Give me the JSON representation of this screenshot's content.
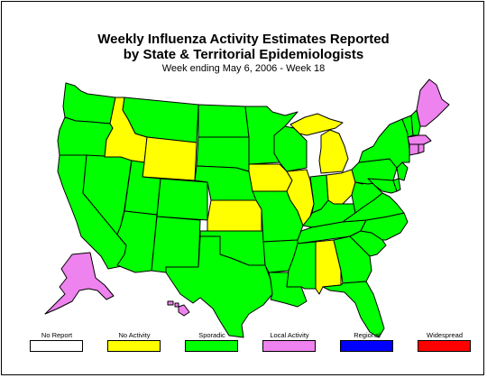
{
  "title_line1": "Weekly Influenza Activity Estimates Reported",
  "title_line2": "by State & Territorial Epidemiologists",
  "subtitle": "Week ending May 6, 2006 - Week 18",
  "colors": {
    "no_report": "#ffffff",
    "no_activity": "#ffff00",
    "sporadic": "#00ff00",
    "local": "#ee82ee",
    "regional": "#0000ff",
    "widespread": "#ff0000"
  },
  "legend": [
    {
      "label": "No Report",
      "color": "#ffffff"
    },
    {
      "label": "No Activity",
      "color": "#ffff00"
    },
    {
      "label": "Sporadic",
      "color": "#00ff00"
    },
    {
      "label": "Local Activity",
      "color": "#ee82ee"
    },
    {
      "label": "Regional",
      "color": "#0000ff"
    },
    {
      "label": "Widespread",
      "color": "#ff0000"
    }
  ],
  "states": {
    "WA": "sporadic",
    "OR": "sporadic",
    "CA": "sporadic",
    "NV": "sporadic",
    "ID": "no_activity",
    "MT": "sporadic",
    "WY": "no_activity",
    "UT": "sporadic",
    "AZ": "sporadic",
    "CO": "sporadic",
    "NM": "sporadic",
    "ND": "sporadic",
    "SD": "sporadic",
    "NE": "sporadic",
    "KS": "no_activity",
    "OK": "sporadic",
    "TX": "sporadic",
    "MN": "sporadic",
    "IA": "no_activity",
    "MO": "sporadic",
    "AR": "sporadic",
    "LA": "sporadic",
    "WI": "sporadic",
    "IL": "no_activity",
    "MI": "no_activity",
    "IN": "sporadic",
    "OH": "no_activity",
    "KY": "sporadic",
    "TN": "sporadic",
    "MS": "sporadic",
    "AL": "no_activity",
    "GA": "sporadic",
    "FL": "sporadic",
    "SC": "sporadic",
    "NC": "sporadic",
    "VA": "sporadic",
    "WV": "sporadic",
    "PA": "sporadic",
    "NY": "sporadic",
    "VT": "sporadic",
    "NH": "sporadic",
    "ME": "local",
    "MA": "local",
    "CT": "local",
    "RI": "local",
    "NJ": "sporadic",
    "DE": "sporadic",
    "MD": "sporadic",
    "AK": "local",
    "HI": "local"
  }
}
